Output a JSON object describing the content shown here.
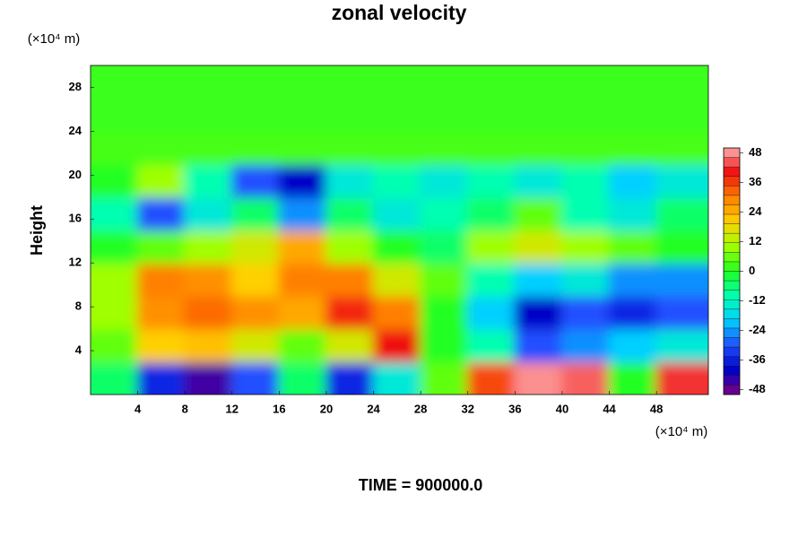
{
  "chart_data": {
    "type": "heatmap",
    "title": "zonal velocity",
    "y_label": "Height",
    "y_unit": "(×10⁴ m)",
    "x_unit": "(×10⁴ m)",
    "annotation": "TIME = 900000.0",
    "x": [
      2,
      6,
      10,
      14,
      18,
      22,
      26,
      30,
      34,
      38,
      42,
      46,
      50
    ],
    "y": [
      1.5,
      4.5,
      7.5,
      10.5,
      13.5,
      16.5,
      19.5,
      22.5,
      25.5,
      28.5
    ],
    "z": [
      [
        -5,
        -35,
        -45,
        -30,
        -5,
        -35,
        -15,
        5,
        35,
        48,
        45,
        0,
        42
      ],
      [
        5,
        20,
        22,
        15,
        5,
        15,
        40,
        0,
        -10,
        -30,
        -25,
        -20,
        -15
      ],
      [
        10,
        28,
        32,
        28,
        25,
        38,
        30,
        0,
        -20,
        -40,
        -30,
        -35,
        -30
      ],
      [
        10,
        30,
        28,
        20,
        30,
        30,
        15,
        5,
        -10,
        -20,
        -15,
        -25,
        -25
      ],
      [
        0,
        5,
        10,
        15,
        25,
        10,
        0,
        -5,
        10,
        15,
        10,
        5,
        0
      ],
      [
        -10,
        -30,
        -15,
        -5,
        -25,
        -5,
        -15,
        -10,
        -5,
        5,
        -10,
        -15,
        -5
      ],
      [
        0,
        10,
        -10,
        -30,
        -40,
        -15,
        -10,
        -15,
        -10,
        -15,
        -10,
        -20,
        -15
      ],
      [
        3,
        3,
        3,
        3,
        3,
        3,
        3,
        3,
        3,
        3,
        3,
        3,
        3
      ],
      [
        2,
        2,
        2,
        2,
        2,
        2,
        2,
        2,
        2,
        2,
        2,
        2,
        2
      ],
      [
        2,
        2,
        2,
        2,
        2,
        2,
        2,
        2,
        2,
        2,
        2,
        2,
        2
      ]
    ],
    "xlim": [
      0,
      52.4
    ],
    "ylim": [
      0,
      30
    ],
    "xticks": [
      4,
      8,
      12,
      16,
      20,
      24,
      28,
      32,
      36,
      40,
      44,
      48
    ],
    "yticks": [
      4,
      8,
      12,
      16,
      20,
      24,
      28
    ],
    "zlim": [
      -50,
      50
    ],
    "colorbar_ticks": [
      48,
      36,
      24,
      12,
      0,
      -12,
      -24,
      -36,
      -48
    ],
    "colorscale": [
      "#800080",
      "#0000c8",
      "#2050ff",
      "#00d0ff",
      "#00ffb0",
      "#20ff20",
      "#a0ff00",
      "#ffd000",
      "#ff8000",
      "#f01010",
      "#ffb0b0"
    ]
  }
}
